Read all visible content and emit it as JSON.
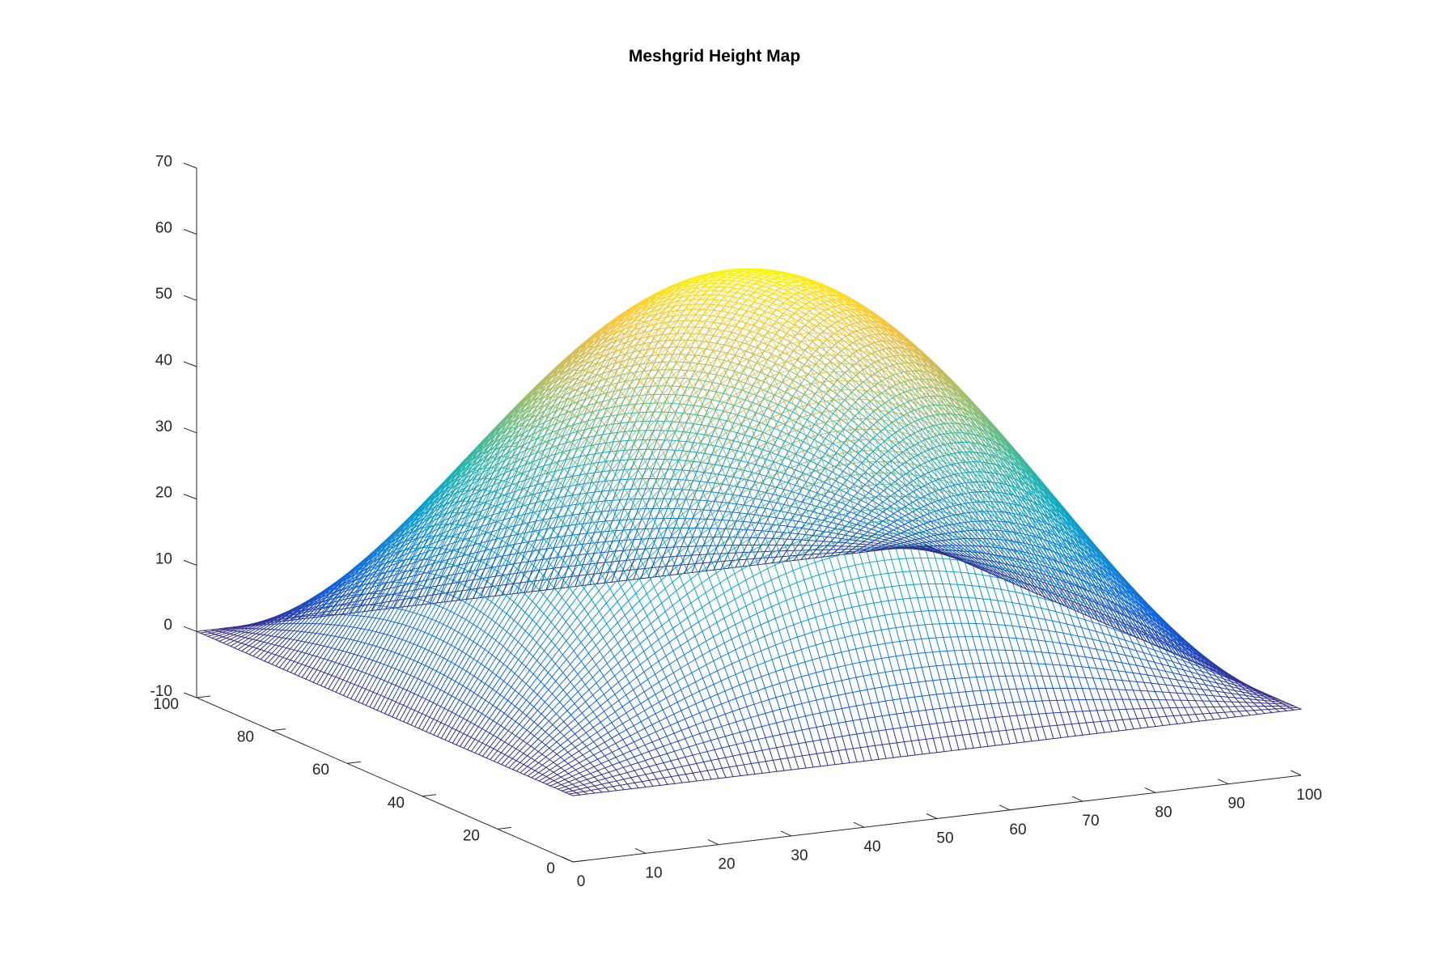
{
  "chart_data": {
    "type": "surface-mesh",
    "title": "Meshgrid Height Map",
    "xlabel": "",
    "ylabel": "",
    "zlabel": "",
    "xlim": [
      0,
      100
    ],
    "ylim": [
      0,
      100
    ],
    "zlim": [
      -10,
      70
    ],
    "x_ticks": [
      0,
      10,
      20,
      30,
      40,
      50,
      60,
      70,
      80,
      90,
      100
    ],
    "y_ticks": [
      0,
      20,
      40,
      60,
      80,
      100
    ],
    "z_ticks": [
      -10,
      0,
      10,
      20,
      30,
      40,
      50,
      60,
      70
    ],
    "grid": false,
    "colormap": "parula",
    "colormap_stops": [
      "#352a87",
      "#0f5cdd",
      "#1481d6",
      "#06a4ca",
      "#2eb7a4",
      "#87bf77",
      "#d1bb59",
      "#fec832",
      "#f9fb0e"
    ],
    "surface": {
      "description_formula": "z = 60 * sin(pi*x/100) * sin(pi*y/100)",
      "x_range": [
        0,
        100
      ],
      "y_range": [
        0,
        100
      ],
      "peak": {
        "x": 50,
        "y": 50,
        "z": 60
      },
      "edge_value": 0,
      "grid_points": 101
    }
  }
}
